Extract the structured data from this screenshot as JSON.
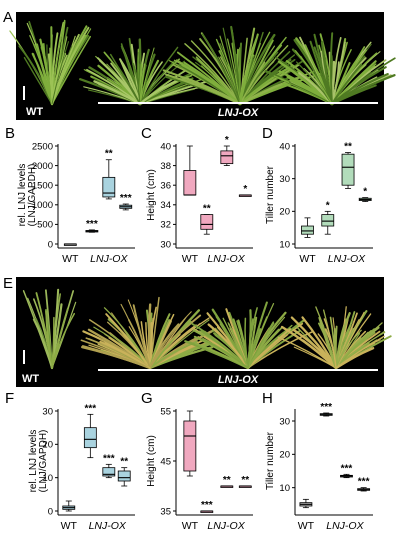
{
  "figure": {
    "panel_a": {
      "letter": "A",
      "wt_label": "WT",
      "ox_label": "LNJ-OX",
      "image": "four potted rice plants on black background: WT and three LNJ-OX lines, all with green leaves",
      "colors": {
        "background": "#000000",
        "leaf_green": "#7fae3c",
        "leaf_dark": "#4f7a22"
      }
    },
    "panel_e": {
      "letter": "E",
      "wt_label": "WT",
      "ox_label": "LNJ-OX",
      "image": "four potted rice plants on black background: sparse WT and three bushier LNJ-OX lines with yellowing leaves",
      "colors": {
        "background": "#000000",
        "leaf_green": "#8dab45",
        "leaf_yellow": "#c9b25a"
      }
    },
    "categories": [
      "WT",
      "LNJ-OX"
    ],
    "colors": {
      "blue_box": "#a9d3df",
      "pink_box": "#f0a8bf",
      "green_box": "#b2dcbb",
      "gray_box": "#bdbdbd",
      "whisker": "#000000"
    }
  },
  "chart_data": [
    {
      "id": "B",
      "type": "box",
      "ylabel_line1": "rel. LNJ levels",
      "ylabel_line2": "(LNJ/GAPDH)",
      "ylim": [
        0,
        2500
      ],
      "yticks": [
        0,
        500,
        1000,
        1500,
        2000,
        2500
      ],
      "group_labels": [
        "WT",
        "LNJ-OX"
      ],
      "boxes": [
        {
          "group": "WT",
          "min": 1,
          "q1": 1,
          "median": 1,
          "q3": 1,
          "max": 1,
          "sig": "",
          "color": "gray"
        },
        {
          "group": "LNJ-OX",
          "min": 300,
          "q1": 310,
          "median": 330,
          "q3": 345,
          "max": 360,
          "sig": "***",
          "color": "blue"
        },
        {
          "group": "LNJ-OX",
          "min": 1150,
          "q1": 1200,
          "median": 1300,
          "q3": 1700,
          "max": 2150,
          "sig": "**",
          "color": "blue"
        },
        {
          "group": "LNJ-OX",
          "min": 870,
          "q1": 910,
          "median": 950,
          "q3": 990,
          "max": 1020,
          "sig": "***",
          "color": "blue"
        }
      ]
    },
    {
      "id": "C",
      "type": "box",
      "ylabel_line1": "Height (cm)",
      "ylabel_line2": "",
      "ylim": [
        30,
        40
      ],
      "yticks": [
        30,
        32,
        34,
        36,
        38,
        40
      ],
      "group_labels": [
        "WT",
        "LNJ-OX"
      ],
      "boxes": [
        {
          "group": "WT",
          "min": 35,
          "q1": 35,
          "median": 35,
          "q3": 37.5,
          "max": 40,
          "sig": "",
          "color": "pink"
        },
        {
          "group": "LNJ-OX",
          "min": 31,
          "q1": 31.5,
          "median": 32,
          "q3": 33,
          "max": 33,
          "sig": "**",
          "color": "pink"
        },
        {
          "group": "LNJ-OX",
          "min": 38,
          "q1": 38.2,
          "median": 39,
          "q3": 39.5,
          "max": 40,
          "sig": "*",
          "color": "pink"
        },
        {
          "group": "LNJ-OX",
          "min": 35,
          "q1": 35,
          "median": 35,
          "q3": 35,
          "max": 35,
          "sig": "*",
          "color": "pink"
        }
      ]
    },
    {
      "id": "D",
      "type": "box",
      "ylabel_line1": "Tiller number",
      "ylabel_line2": "",
      "ylim": [
        10,
        40
      ],
      "yticks": [
        10,
        20,
        30,
        40
      ],
      "group_labels": [
        "WT",
        "LNJ-OX"
      ],
      "boxes": [
        {
          "group": "WT",
          "min": 12,
          "q1": 13,
          "median": 14,
          "q3": 15.5,
          "max": 18,
          "sig": "",
          "color": "green"
        },
        {
          "group": "LNJ-OX",
          "min": 13,
          "q1": 15.5,
          "median": 17,
          "q3": 19,
          "max": 20,
          "sig": "*",
          "color": "green"
        },
        {
          "group": "LNJ-OX",
          "min": 27,
          "q1": 28,
          "median": 33.5,
          "q3": 37.5,
          "max": 38,
          "sig": "**",
          "color": "green"
        },
        {
          "group": "LNJ-OX",
          "min": 23,
          "q1": 23.3,
          "median": 23.6,
          "q3": 24,
          "max": 24.2,
          "sig": "*",
          "color": "green"
        }
      ]
    },
    {
      "id": "F",
      "type": "box",
      "ylabel_line1": "rel. LNJ levels",
      "ylabel_line2": "(LNJ/GAPDH)",
      "ylim": [
        0,
        30
      ],
      "yticks": [
        0,
        10,
        20,
        30
      ],
      "group_labels": [
        "WT",
        "LNJ-OX"
      ],
      "boxes": [
        {
          "group": "WT",
          "min": 0,
          "q1": 0.5,
          "median": 1,
          "q3": 1.5,
          "max": 3,
          "sig": "",
          "color": "blue"
        },
        {
          "group": "LNJ-OX",
          "min": 16,
          "q1": 19,
          "median": 21.5,
          "q3": 25,
          "max": 29,
          "sig": "***",
          "color": "blue"
        },
        {
          "group": "LNJ-OX",
          "min": 10,
          "q1": 10.5,
          "median": 11,
          "q3": 13,
          "max": 14,
          "sig": "***",
          "color": "blue"
        },
        {
          "group": "LNJ-OX",
          "min": 7.5,
          "q1": 9,
          "median": 10,
          "q3": 12,
          "max": 13,
          "sig": "**",
          "color": "blue"
        }
      ]
    },
    {
      "id": "G",
      "type": "box",
      "ylabel_line1": "Height (cm)",
      "ylabel_line2": "",
      "ylim": [
        35,
        55
      ],
      "yticks": [
        35,
        45,
        55
      ],
      "group_labels": [
        "WT",
        "LNJ-OX"
      ],
      "boxes": [
        {
          "group": "WT",
          "min": 42,
          "q1": 43,
          "median": 50,
          "q3": 53,
          "max": 55,
          "sig": "",
          "color": "pink"
        },
        {
          "group": "LNJ-OX",
          "min": 35,
          "q1": 35,
          "median": 35,
          "q3": 35,
          "max": 35,
          "sig": "***",
          "color": "pink"
        },
        {
          "group": "LNJ-OX",
          "min": 40,
          "q1": 40,
          "median": 40,
          "q3": 40,
          "max": 40,
          "sig": "**",
          "color": "pink"
        },
        {
          "group": "LNJ-OX",
          "min": 40,
          "q1": 40,
          "median": 40,
          "q3": 40,
          "max": 40,
          "sig": "**",
          "color": "pink"
        }
      ]
    },
    {
      "id": "H",
      "type": "box",
      "ylabel_line1": "Tiller number",
      "ylabel_line2": "",
      "ylim": [
        3,
        33
      ],
      "yticks": [
        10,
        20,
        30
      ],
      "group_labels": [
        "WT",
        "LNJ-OX"
      ],
      "boxes": [
        {
          "group": "WT",
          "min": 4,
          "q1": 4.5,
          "median": 5,
          "q3": 5.5,
          "max": 6.5,
          "sig": "",
          "color": "gray"
        },
        {
          "group": "LNJ-OX",
          "min": 31.5,
          "q1": 31.7,
          "median": 32,
          "q3": 32.2,
          "max": 32.4,
          "sig": "***",
          "color": "blue"
        },
        {
          "group": "LNJ-OX",
          "min": 13,
          "q1": 13.2,
          "median": 13.5,
          "q3": 13.7,
          "max": 14,
          "sig": "***",
          "color": "gray"
        },
        {
          "group": "LNJ-OX",
          "min": 9,
          "q1": 9.2,
          "median": 9.5,
          "q3": 9.7,
          "max": 10,
          "sig": "***",
          "color": "gray"
        }
      ]
    }
  ]
}
